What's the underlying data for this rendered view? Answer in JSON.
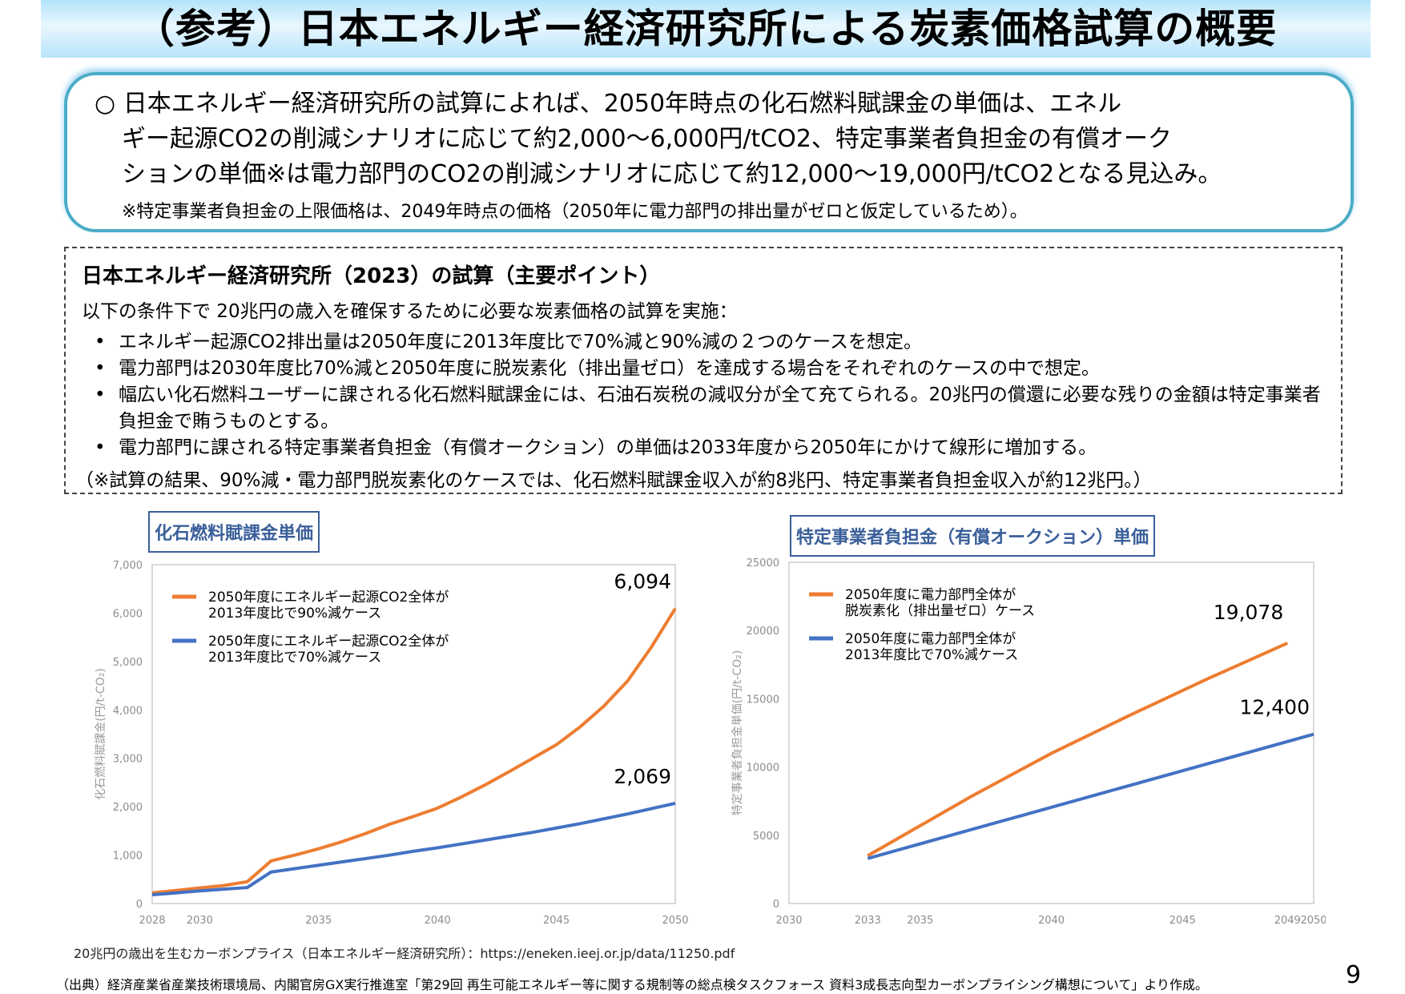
{
  "title": "（参考）日本エネルギー経済研究所による炭素価格試算の概要",
  "summary": {
    "bullet": "○",
    "lines": [
      "日本エネルギー経済研究所の試算によれば、2050年時点の化石燃料賦課金の単価は、エネル",
      "ギー起源CO2の削減シナリオに応じて約2,000～6,000円/tCO2、特定事業者負担金の有償オーク",
      "ションの単価※は電力部門のCO2の削減シナリオに応じて約12,000～19,000円/tCO2となる見込み。"
    ],
    "note": "※特定事業者負担金の上限価格は、2049年時点の価格（2050年に電力部門の排出量がゼロと仮定しているため）。"
  },
  "points": {
    "heading": "日本エネルギー経済研究所（2023）の試算（主要ポイント）",
    "lead": "以下の条件下で 20兆円の歳入を確保するために必要な炭素価格の試算を実施：",
    "items": [
      "エネルギー起源CO2排出量は2050年度に2013年度比で70%減と90%減の２つのケースを想定。",
      "電力部門は2030年度比70%減と2050年度に脱炭素化（排出量ゼロ）を達成する場合をそれぞれのケースの中で想定。",
      "幅広い化石燃料ユーザーに課される化石燃料賦課金には、石油石炭税の減収分が全て充てられる。20兆円の償還に必要な残りの金額は特定事業者負担金で賄うものとする。",
      "電力部門に課される特定事業者負担金（有償オークション）の単価は2033年度から2050年にかけて線形に増加する。"
    ],
    "result": "（※試算の結果、90%減・電力部門脱炭素化のケースでは、化石燃料賦課金収入が約8兆円、特定事業者負担金収入が約12兆円。）"
  },
  "chart_data": [
    {
      "type": "line",
      "title": "化石燃料賦課金単価",
      "ylabel": "化石燃料賦課金(円/t-CO₂)",
      "xlabel": "",
      "xlim": [
        2028,
        2050
      ],
      "ylim": [
        0,
        7000
      ],
      "yticks": [
        "0",
        "1,000",
        "2,000",
        "3,000",
        "4,000",
        "5,000",
        "6,000",
        "7,000"
      ],
      "xticks": [
        "2028",
        "2030",
        "2035",
        "2040",
        "2045",
        "2050"
      ],
      "legend": "top-left",
      "grid": false,
      "x": [
        2028,
        2029,
        2030,
        2031,
        2032,
        2033,
        2034,
        2035,
        2036,
        2037,
        2038,
        2039,
        2040,
        2041,
        2042,
        2043,
        2044,
        2045,
        2046,
        2047,
        2048,
        2049,
        2050
      ],
      "series": [
        {
          "name": "2050年度にエネルギー起源CO2全体が2013年度比で90%減ケース",
          "color": "#ed7d31",
          "values": [
            220,
            270,
            320,
            370,
            450,
            880,
            1000,
            1130,
            1280,
            1450,
            1640,
            1800,
            1970,
            2200,
            2450,
            2720,
            3000,
            3280,
            3650,
            4080,
            4600,
            5300,
            6094
          ],
          "end_label": "6,094"
        },
        {
          "name": "2050年度にエネルギー起源CO2全体が2013年度比で70%減ケース",
          "color": "#4472c4",
          "values": [
            180,
            220,
            260,
            295,
            330,
            650,
            720,
            790,
            860,
            930,
            1000,
            1080,
            1150,
            1230,
            1310,
            1390,
            1470,
            1560,
            1650,
            1750,
            1850,
            1960,
            2069
          ],
          "end_label": "2,069"
        }
      ]
    },
    {
      "type": "line",
      "title": "特定事業者負担金（有償オークション）単価",
      "ylabel": "特定事業者負担金単価(円/t-CO₂)",
      "xlabel": "",
      "xlim": [
        2030,
        2050
      ],
      "ylim": [
        0,
        25000
      ],
      "yticks": [
        "0",
        "5000",
        "10000",
        "15000",
        "20000",
        "25000"
      ],
      "xticks": [
        "2030",
        "2033",
        "2035",
        "2040",
        "2045",
        "2049",
        "2050"
      ],
      "legend": "top-left",
      "grid": false,
      "series": [
        {
          "name": "2050年度に電力部門全体が脱炭素化（排出量ゼロ）ケース",
          "color": "#ed7d31",
          "x": [
            2033,
            2035,
            2037,
            2040,
            2043,
            2046,
            2049
          ],
          "values": [
            3500,
            5700,
            7900,
            11000,
            13800,
            16500,
            19078
          ],
          "end_label": "19,078"
        },
        {
          "name": "2050年度に電力部門全体が2013年度比で70%減ケース",
          "color": "#4472c4",
          "x": [
            2033,
            2050
          ],
          "values": [
            3300,
            12400
          ],
          "end_label": "12,400"
        }
      ]
    }
  ],
  "source_note": "20兆円の歳出を生むカーボンプライス（日本エネルギー経済研究所）：https://eneken.ieej.or.jp/data/11250.pdf",
  "citation": "（出典）経済産業省産業技術環境局、内閣官房GX実行推進室「第29回 再生可能エネルギー等に関する規制等の総点検タスクフォース 資料3成長志向型カーボンプライシング構想について」より作成。",
  "page_number": "9"
}
